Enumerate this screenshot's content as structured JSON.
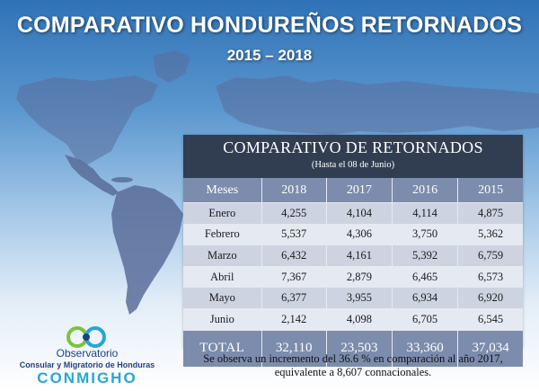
{
  "header": {
    "title": "COMPARATIVO HONDUREÑOS RETORNADOS",
    "subtitle": "2015 – 2018"
  },
  "panel": {
    "title": "COMPARATIVO DE RETORNADOS",
    "subtitle": "(Hasta el 08 de Junio)"
  },
  "table": {
    "columns": [
      "Meses",
      "2018",
      "2017",
      "2016",
      "2015"
    ],
    "rows": [
      {
        "label": "Enero",
        "values": [
          "4,255",
          "4,104",
          "4,114",
          "4,875"
        ]
      },
      {
        "label": "Febrero",
        "values": [
          "5,537",
          "4,306",
          "3,750",
          "5,362"
        ]
      },
      {
        "label": "Marzo",
        "values": [
          "6,432",
          "4,161",
          "5,392",
          "6,759"
        ]
      },
      {
        "label": "Abril",
        "values": [
          "7,367",
          "2,879",
          "6,465",
          "6,573"
        ]
      },
      {
        "label": "Mayo",
        "values": [
          "6,377",
          "3,955",
          "6,934",
          "6,920"
        ]
      },
      {
        "label": "Junio",
        "values": [
          "2,142",
          "4,098",
          "6,705",
          "6,545"
        ]
      }
    ],
    "total": {
      "label": "TOTAL",
      "values": [
        "32,110",
        "23,503",
        "33,360",
        "37,034"
      ]
    }
  },
  "note": {
    "line1": "Se observa un incremento del 36.6 % en comparación al año 2017,",
    "line2": "equivalente a 8,607 connacionales."
  },
  "logo": {
    "line1": "Observatorio",
    "line2": "Consular y Migratorio de Honduras",
    "line3": "CONMIGHO"
  },
  "colors": {
    "map_land": "#5a6d9a",
    "table_header": "#7c8cac",
    "panel_header": "#313e52",
    "brand_blue": "#1f3f86",
    "brand_cyan": "#26a7d4",
    "brand_green": "#7cc242"
  }
}
